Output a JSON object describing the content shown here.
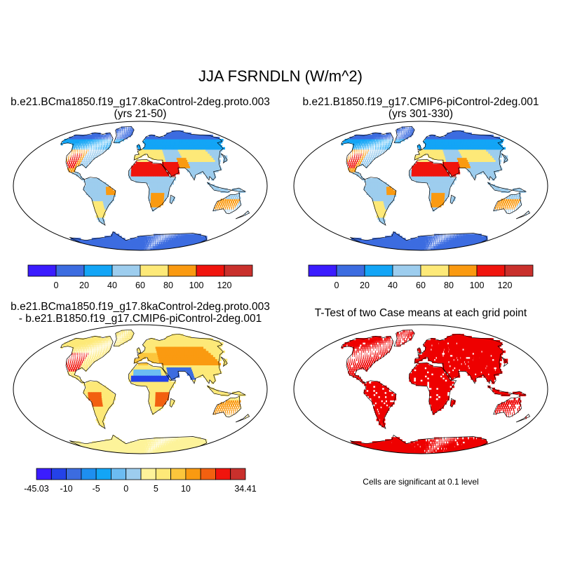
{
  "title": "JJA FSRNDLN (W/m^2)",
  "panels": [
    {
      "title_line1": "b.e21.BCma1850.f19_g17.8kaControl-2deg.proto.003",
      "title_line2": "(yrs 21-50)",
      "fill": "mean"
    },
    {
      "title_line1": "b.e21.B1850.f19_g17.CMIP6-piControl-2deg.001",
      "title_line2": "(yrs 301-330)",
      "fill": "mean"
    },
    {
      "title_line1": "b.e21.BCma1850.f19_g17.8kaControl-2deg.proto.003",
      "title_line2": "- b.e21.B1850.f19_g17.CMIP6-piControl-2deg.001",
      "fill": "diff"
    },
    {
      "title_line1": "T-Test of two Case means at each grid point",
      "title_line2": "",
      "fill": "ttest",
      "note": "Cells are significant at 0.1 level"
    }
  ],
  "colorbar_mean": {
    "colors": [
      "#3b1cff",
      "#3c6ce0",
      "#13a5f6",
      "#9dcdee",
      "#fde978",
      "#fa9a11",
      "#f0140d",
      "#c9302c"
    ],
    "labels": [
      "0",
      "20",
      "40",
      "60",
      "80",
      "100",
      "120"
    ]
  },
  "colorbar_diff": {
    "colors": [
      "#3b1cff",
      "#2442e8",
      "#3c6ce0",
      "#1e8ff0",
      "#13a5f6",
      "#6cbcf2",
      "#9dcdee",
      "#fdf39a",
      "#fde978",
      "#fcc63c",
      "#fa9a11",
      "#f26010",
      "#f0140d",
      "#c9302c"
    ],
    "labels": [
      "-45.03",
      "-10",
      "-5",
      "0",
      "5",
      "10",
      "34.41"
    ],
    "label_slots": [
      0,
      2,
      4,
      6,
      8,
      10,
      14
    ]
  },
  "ttest_color": "#ee0000"
}
